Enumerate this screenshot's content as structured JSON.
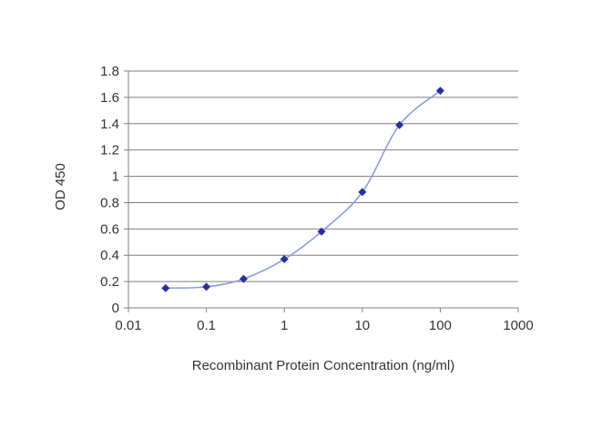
{
  "chart_data": {
    "type": "line",
    "title": "",
    "xlabel": "Recombinant Protein Concentration (ng/ml)",
    "ylabel": "OD 450",
    "x_scale": "log",
    "xlim": [
      0.01,
      1000
    ],
    "ylim": [
      0,
      1.8
    ],
    "x_ticks": [
      0.01,
      0.1,
      1,
      10,
      100,
      1000
    ],
    "x_tick_labels": [
      "0.01",
      "0.1",
      "1",
      "10",
      "100",
      "1000"
    ],
    "y_ticks": [
      0,
      0.2,
      0.4,
      0.6,
      0.8,
      1,
      1.2,
      1.4,
      1.6,
      1.8
    ],
    "y_tick_labels": [
      "0",
      "0.2",
      "0.4",
      "0.6",
      "0.8",
      "1",
      "1.2",
      "1.4",
      "1.6",
      "1.8"
    ],
    "grid": "horizontal",
    "legend": "none",
    "series": [
      {
        "x": [
          0.03,
          0.1,
          0.3,
          1,
          3,
          10,
          30,
          100
        ],
        "y": [
          0.15,
          0.16,
          0.22,
          0.37,
          0.58,
          0.88,
          1.39,
          1.65
        ]
      }
    ],
    "colors": {
      "line": "#8b9ddb",
      "marker": "#2a2f9c",
      "grid": "#7f7f7f",
      "axis": "#7f7f7f",
      "text": "#333333"
    }
  }
}
